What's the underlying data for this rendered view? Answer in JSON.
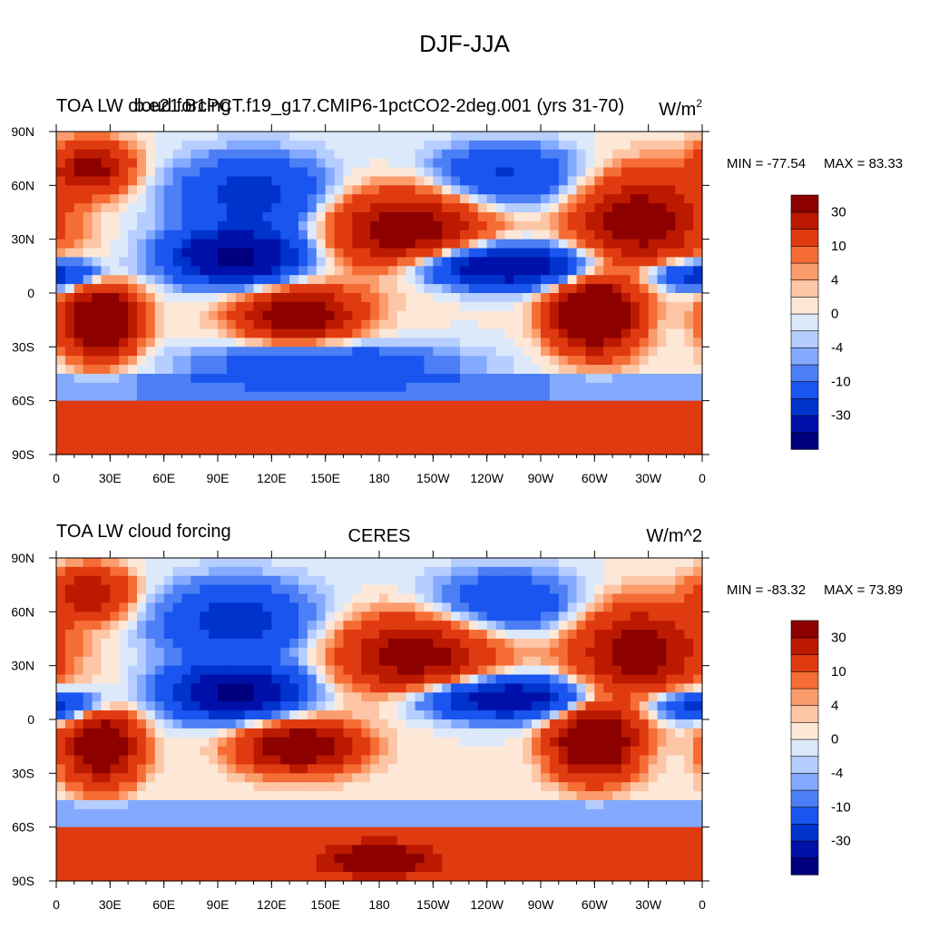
{
  "figure": {
    "title": "DJF-JJA"
  },
  "colorbar": {
    "levels": [
      "-30",
      "-10",
      "-4",
      "0",
      "4",
      "10",
      "30"
    ],
    "colors": [
      "#00007f",
      "#0011aa",
      "#0033cc",
      "#1a55f0",
      "#4c7ff5",
      "#84aaff",
      "#b6cdff",
      "#dce9fb",
      "#fde8d8",
      "#fdc6a6",
      "#fb9c6c",
      "#f56d35",
      "#e03a10",
      "#bb1a00",
      "#8c0000"
    ]
  },
  "chart_data": [
    {
      "type": "heatmap",
      "left_title": "TOA LW cloud forcing",
      "center_title": "b.e21.B1PCT.f19_g17.CMIP6-1pctCO2-2deg.001 (yrs 31-70)",
      "right_title": "W/m",
      "right_title_sup": "2",
      "min_label": "MIN = -77.54",
      "max_label": "MAX =  83.33",
      "min": -77.54,
      "max": 83.33,
      "xticks": [
        "0",
        "30E",
        "60E",
        "90E",
        "120E",
        "150E",
        "180",
        "150W",
        "120W",
        "90W",
        "60W",
        "30W",
        "0"
      ],
      "yticks": [
        "90N",
        "60N",
        "30N",
        "0",
        "30S",
        "60S",
        "90S"
      ],
      "projection": "cylindrical equidistant, 0 to 360 E",
      "fields": [
        {
          "lon": 25,
          "lat": -15,
          "amp": 55,
          "sx": 14,
          "sy": 14
        },
        {
          "lon": 135,
          "lat": -12,
          "amp": 45,
          "sx": 22,
          "sy": 10
        },
        {
          "lon": 300,
          "lat": -12,
          "amp": 60,
          "sx": 16,
          "sy": 14
        },
        {
          "lon": 195,
          "lat": 35,
          "amp": 40,
          "sx": 30,
          "sy": 16
        },
        {
          "lon": 325,
          "lat": 40,
          "amp": 40,
          "sx": 25,
          "sy": 18
        },
        {
          "lon": 20,
          "lat": 70,
          "amp": 35,
          "sx": 15,
          "sy": 10
        },
        {
          "lon": 100,
          "lat": 20,
          "amp": -55,
          "sx": 25,
          "sy": 10
        },
        {
          "lon": 250,
          "lat": 15,
          "amp": -50,
          "sx": 35,
          "sy": 8
        },
        {
          "lon": 110,
          "lat": 55,
          "amp": -25,
          "sx": 30,
          "sy": 15
        },
        {
          "lon": 250,
          "lat": 65,
          "amp": -22,
          "sx": 30,
          "sy": 12
        },
        {
          "lon": 150,
          "lat": -40,
          "amp": -20,
          "sx": 50,
          "sy": 8
        },
        {
          "lon": 0,
          "lat": 10,
          "amp": -30,
          "sx": 20,
          "sy": 6
        }
      ]
    },
    {
      "type": "heatmap",
      "left_title": "TOA LW cloud forcing",
      "center_title": "CERES",
      "right_title": "W/m^2",
      "right_title_sup": "",
      "min_label": "MIN = -83.32",
      "max_label": "MAX =  73.89",
      "min": -83.32,
      "max": 73.89,
      "xticks": [
        "0",
        "30E",
        "60E",
        "90E",
        "120E",
        "150E",
        "180",
        "150W",
        "120W",
        "90W",
        "60W",
        "30W",
        "0"
      ],
      "yticks": [
        "90N",
        "60N",
        "30N",
        "0",
        "30S",
        "60S",
        "90S"
      ],
      "projection": "cylindrical equidistant, 0 to 360 E",
      "fields": [
        {
          "lon": 25,
          "lat": -15,
          "amp": 50,
          "sx": 14,
          "sy": 14
        },
        {
          "lon": 135,
          "lat": -15,
          "amp": 45,
          "sx": 22,
          "sy": 10
        },
        {
          "lon": 300,
          "lat": -12,
          "amp": 55,
          "sx": 16,
          "sy": 14
        },
        {
          "lon": 200,
          "lat": 35,
          "amp": 38,
          "sx": 30,
          "sy": 16
        },
        {
          "lon": 325,
          "lat": 38,
          "amp": 38,
          "sx": 25,
          "sy": 18
        },
        {
          "lon": 20,
          "lat": 70,
          "amp": 30,
          "sx": 15,
          "sy": 10
        },
        {
          "lon": 100,
          "lat": 15,
          "amp": -55,
          "sx": 25,
          "sy": 10
        },
        {
          "lon": 250,
          "lat": 12,
          "amp": -45,
          "sx": 35,
          "sy": 8
        },
        {
          "lon": 100,
          "lat": 55,
          "amp": -25,
          "sx": 30,
          "sy": 15
        },
        {
          "lon": 250,
          "lat": 65,
          "amp": -20,
          "sx": 30,
          "sy": 12
        },
        {
          "lon": 180,
          "lat": -78,
          "amp": 40,
          "sx": 20,
          "sy": 6
        },
        {
          "lon": 0,
          "lat": 8,
          "amp": -30,
          "sx": 20,
          "sy": 6
        }
      ]
    }
  ]
}
